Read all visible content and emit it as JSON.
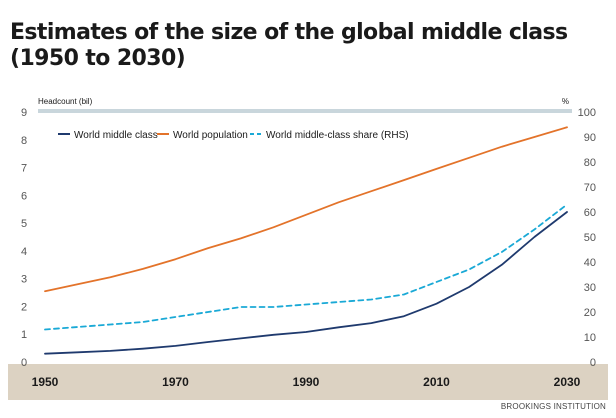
{
  "title_line1": "Estimates of the size of the global middle class",
  "title_line2": "(1950 to 2030)",
  "source": "BROOKINGS INSTITUTION",
  "colors": {
    "middle_class": "#1f3a6e",
    "population": "#e3732a",
    "share": "#1aa9d6",
    "x_band": "#dcd2c2",
    "top_band": "#c9d6dc"
  },
  "chart_data": {
    "type": "line",
    "ylabel": "Headcount (bil)",
    "y2label": "%",
    "ylim": [
      0,
      9
    ],
    "y2lim": [
      0,
      100
    ],
    "yticks": [
      0,
      1,
      2,
      3,
      4,
      5,
      6,
      7,
      8,
      9
    ],
    "y2ticks": [
      0,
      10,
      20,
      30,
      40,
      50,
      60,
      70,
      80,
      90,
      100
    ],
    "xlim": [
      1950,
      2030
    ],
    "xticks": [
      1950,
      1970,
      1990,
      2010,
      2030
    ],
    "grid": false,
    "legend_position": "top-left",
    "series": [
      {
        "name": "World middle class",
        "key": "middle_class",
        "axis": "left",
        "style": "solid",
        "x": [
          1950,
          1955,
          1960,
          1965,
          1970,
          1975,
          1980,
          1985,
          1990,
          1995,
          2000,
          2005,
          2010,
          2015,
          2020,
          2025,
          2030
        ],
        "values": [
          0.3,
          0.35,
          0.4,
          0.48,
          0.58,
          0.72,
          0.85,
          0.98,
          1.08,
          1.25,
          1.4,
          1.65,
          2.1,
          2.7,
          3.5,
          4.5,
          5.4
        ]
      },
      {
        "name": "World population",
        "key": "population",
        "axis": "left",
        "style": "solid",
        "x": [
          1950,
          1955,
          1960,
          1965,
          1970,
          1975,
          1980,
          1985,
          1990,
          1995,
          2000,
          2005,
          2010,
          2015,
          2020,
          2025,
          2030
        ],
        "values": [
          2.55,
          2.8,
          3.05,
          3.35,
          3.7,
          4.1,
          4.45,
          4.85,
          5.3,
          5.75,
          6.15,
          6.55,
          6.95,
          7.35,
          7.75,
          8.1,
          8.45
        ]
      },
      {
        "name": "World middle-class share (RHS)",
        "key": "share",
        "axis": "right",
        "style": "dashed",
        "x": [
          1950,
          1955,
          1960,
          1965,
          1970,
          1975,
          1980,
          1985,
          1990,
          1995,
          2000,
          2005,
          2010,
          2015,
          2020,
          2025,
          2030
        ],
        "values": [
          13,
          14,
          15,
          16,
          18,
          20,
          22,
          22,
          23,
          24,
          25,
          27,
          32,
          37,
          44,
          53,
          63
        ]
      }
    ]
  }
}
